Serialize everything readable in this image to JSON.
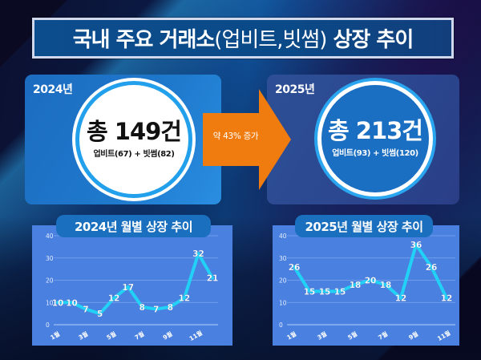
{
  "title": {
    "bold_part": "국내 주요 거래소",
    "light_part": "(업비트,빗썸)",
    "bold_tail": " 상장 추이"
  },
  "summary": {
    "y2024": {
      "year_label": "2024년",
      "total": "총 149건",
      "breakdown": "업비트(67) + 빗썸(82)"
    },
    "y2025": {
      "year_label": "2025년",
      "total": "총 213건",
      "breakdown": "업비트(93) + 빗썸(120)"
    },
    "arrow_label": "약 43% 증가"
  },
  "colors": {
    "accent_orange": "#f07c10",
    "line_cyan": "#22d2f6",
    "chart_panel": "#4a80e0",
    "pill_blue": "#1a6fbe"
  },
  "chart_data": [
    {
      "type": "line",
      "title": "2024년 월별 상장 추이",
      "categories": [
        "1월",
        "2월",
        "3월",
        "4월",
        "5월",
        "6월",
        "7월",
        "8월",
        "9월",
        "10월",
        "11월",
        "12월"
      ],
      "x_tick_labels": [
        "1월",
        "3월",
        "5월",
        "7월",
        "9월",
        "11월"
      ],
      "values": [
        10,
        10,
        7,
        5,
        12,
        17,
        8,
        7,
        8,
        12,
        32,
        21
      ],
      "xlabel": "",
      "ylabel": "",
      "ylim": [
        0,
        40
      ],
      "y_ticks": [
        0,
        10,
        20,
        30,
        40
      ],
      "grid": true,
      "legend": "none",
      "data_labels": true
    },
    {
      "type": "line",
      "title": "2025년 월별 상장 추이",
      "categories": [
        "1월",
        "2월",
        "3월",
        "4월",
        "5월",
        "6월",
        "7월",
        "8월",
        "9월",
        "10월",
        "11월"
      ],
      "x_tick_labels": [
        "1월",
        "3월",
        "5월",
        "7월",
        "9월",
        "11월"
      ],
      "values": [
        26,
        15,
        15,
        15,
        18,
        20,
        18,
        12,
        36,
        26,
        12
      ],
      "xlabel": "",
      "ylabel": "",
      "ylim": [
        0,
        40
      ],
      "y_ticks": [
        0,
        10,
        20,
        30,
        40
      ],
      "grid": true,
      "legend": "none",
      "data_labels": true
    }
  ]
}
